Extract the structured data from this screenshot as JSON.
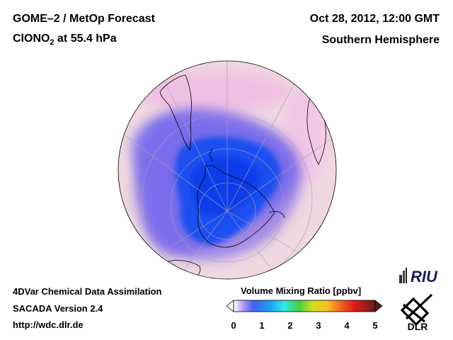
{
  "header": {
    "title_line1": "GOME–2 / MetOp Forecast",
    "title_species": "ClONO",
    "title_species_sub": "2",
    "title_level": " at 55.4 hPa",
    "date": "Oct 28, 2012, 12:00 GMT",
    "region": "Southern Hemisphere"
  },
  "footer": {
    "line1": "4DVar Chemical Data Assimilation",
    "line2": "SACADA Version 2.4",
    "line3": "http://wdc.dlr.de"
  },
  "colorbar": {
    "title": "Volume Mixing Ratio [ppbv]",
    "ticks": [
      "0",
      "1",
      "2",
      "3",
      "4",
      "5"
    ],
    "min": 0,
    "max": 5
  },
  "logos": {
    "riu": "RIU",
    "dlr": "DLR"
  },
  "colors": {
    "ocean_background": "#efd8e0",
    "high_vmr": "#f0c8e8",
    "low_vmr": "#1e50f0",
    "coastline": "#000000"
  }
}
